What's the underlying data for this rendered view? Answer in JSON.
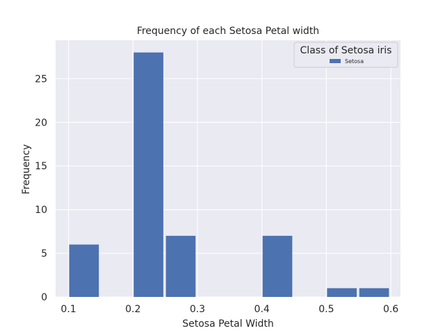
{
  "chart_data": {
    "type": "bar",
    "title": "Frequency of each Setosa Petal width",
    "xlabel": "Setosa Petal Width",
    "ylabel": "Frequency",
    "xlim": [
      0.08,
      0.615
    ],
    "ylim": [
      0,
      29.4
    ],
    "x_ticks": [
      0.1,
      0.2,
      0.3,
      0.4,
      0.5,
      0.6
    ],
    "x_tick_labels": [
      "0.1",
      "0.2",
      "0.3",
      "0.4",
      "0.5",
      "0.6"
    ],
    "y_ticks": [
      0,
      5,
      10,
      15,
      20,
      25
    ],
    "y_tick_labels": [
      "0",
      "5",
      "10",
      "15",
      "20",
      "25"
    ],
    "grid": true,
    "legend": {
      "title": "Class of Setosa iris",
      "placement": "top-right",
      "entries": [
        "Setosa"
      ]
    },
    "bins": [
      {
        "x0": 0.1,
        "x1": 0.15,
        "value": 6
      },
      {
        "x0": 0.15,
        "x1": 0.2,
        "value": 0
      },
      {
        "x0": 0.2,
        "x1": 0.25,
        "value": 28
      },
      {
        "x0": 0.25,
        "x1": 0.3,
        "value": 7
      },
      {
        "x0": 0.3,
        "x1": 0.35,
        "value": 0
      },
      {
        "x0": 0.35,
        "x1": 0.4,
        "value": 0
      },
      {
        "x0": 0.4,
        "x1": 0.45,
        "value": 7
      },
      {
        "x0": 0.45,
        "x1": 0.5,
        "value": 0
      },
      {
        "x0": 0.5,
        "x1": 0.55,
        "value": 1
      },
      {
        "x0": 0.55,
        "x1": 0.6,
        "value": 1
      }
    ],
    "series": [
      {
        "name": "Setosa",
        "values": [
          6,
          0,
          28,
          7,
          0,
          0,
          7,
          0,
          1,
          1
        ]
      }
    ],
    "colors": {
      "bar": "#4c72b0",
      "plot_background": "#eaeaf2",
      "grid": "#ffffff"
    }
  }
}
